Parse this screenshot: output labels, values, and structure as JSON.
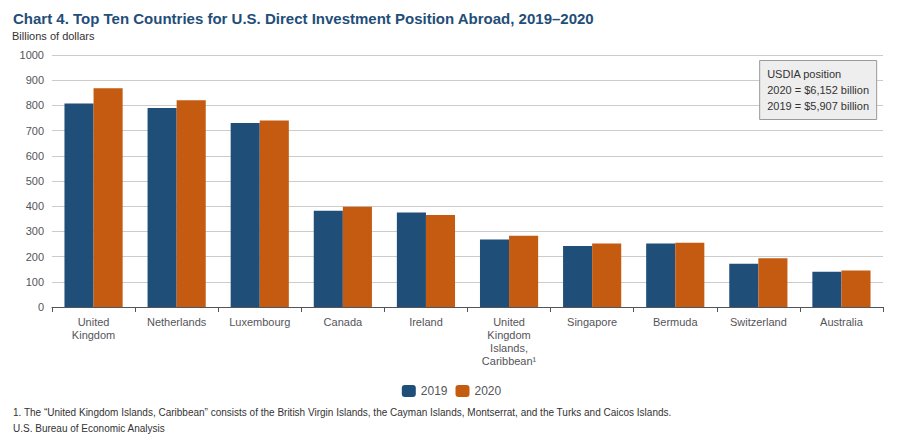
{
  "chart_data": {
    "type": "bar",
    "title": "Chart 4. Top Ten Countries for U.S. Direct Investment Position Abroad, 2019–2020",
    "ylabel": "Billions of dollars",
    "categories": [
      "United\nKingdom",
      "Netherlands",
      "Luxembourg",
      "Canada",
      "Ireland",
      "United\nKingdom\nIslands,\nCaribbean¹",
      "Singapore",
      "Bermuda",
      "Switzerland",
      "Australia"
    ],
    "series": [
      {
        "name": "2019",
        "color": "#1f4e79",
        "values": [
          808,
          790,
          730,
          382,
          375,
          268,
          242,
          252,
          172,
          140
        ]
      },
      {
        "name": "2020",
        "color": "#c55a11",
        "values": [
          868,
          820,
          740,
          398,
          365,
          283,
          252,
          255,
          193,
          145
        ]
      }
    ],
    "ylim": [
      0,
      1000
    ],
    "yticks": [
      0,
      100,
      200,
      300,
      400,
      500,
      600,
      700,
      800,
      900,
      1000
    ],
    "grid": true,
    "legend": "bottom",
    "annotations": [
      "USDIA position",
      "2020 = $6,152 billion",
      "2019 = $5,907 billion"
    ],
    "footnotes": [
      "1. The “United Kingdom Islands, Caribbean” consists of the British Virgin Islands, the Cayman Islands, Montserrat, and the Turks and Caicos Islands.",
      "U.S. Bureau of Economic Analysis"
    ]
  }
}
